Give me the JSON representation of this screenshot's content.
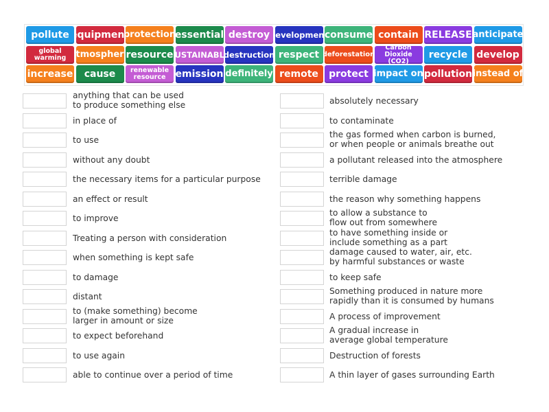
{
  "colors": {
    "blue": "#1f9ae6",
    "red": "#d22a3e",
    "orange": "#f5801d",
    "darkgreen": "#1c8a4b",
    "pink": "#c45cd4",
    "darkblue": "#2634bf",
    "teal": "#3db47a",
    "orangered": "#ec4c1b",
    "purple": "#8a3be0"
  },
  "tiles": [
    {
      "label": "pollute",
      "color": "blue"
    },
    {
      "label": "equipment",
      "color": "red"
    },
    {
      "label": "protection",
      "color": "orange"
    },
    {
      "label": "essential",
      "color": "darkgreen"
    },
    {
      "label": "destroy",
      "color": "pink"
    },
    {
      "label": "development",
      "color": "darkblue"
    },
    {
      "label": "consume",
      "color": "teal"
    },
    {
      "label": "contain",
      "color": "orangered"
    },
    {
      "label": "RELEASE",
      "color": "purple"
    },
    {
      "label": "anticipate",
      "color": "blue"
    },
    {
      "label": "global warming",
      "color": "red"
    },
    {
      "label": "atmosphere",
      "color": "orange"
    },
    {
      "label": "resource",
      "color": "darkgreen"
    },
    {
      "label": "SUSTAINABLE",
      "color": "pink"
    },
    {
      "label": "destruction",
      "color": "darkblue"
    },
    {
      "label": "respect",
      "color": "teal"
    },
    {
      "label": "deforestation",
      "color": "orangered"
    },
    {
      "label": "Carbon Dioxide (CO2)",
      "color": "purple"
    },
    {
      "label": "recycle",
      "color": "blue"
    },
    {
      "label": "develop",
      "color": "red"
    },
    {
      "label": "increase",
      "color": "orange"
    },
    {
      "label": "cause",
      "color": "darkgreen"
    },
    {
      "label": "renewable resource",
      "color": "pink"
    },
    {
      "label": "emission",
      "color": "darkblue"
    },
    {
      "label": "definitely",
      "color": "teal"
    },
    {
      "label": "remote",
      "color": "orangered"
    },
    {
      "label": "protect",
      "color": "purple"
    },
    {
      "label": "impact on",
      "color": "blue"
    },
    {
      "label": "pollution",
      "color": "red"
    },
    {
      "label": "instead of",
      "color": "orange"
    }
  ],
  "left_definitions": [
    "anything that can be used\nto produce something else",
    "in place of",
    "to use",
    "without any doubt",
    "the necessary items for a particular purpose",
    "an effect or result",
    "to improve",
    "Treating a person with consideration",
    "when something is kept safe",
    "to damage",
    "distant",
    "to (make something) become\nlarger in amount or size",
    "to expect beforehand",
    "to use again",
    "able to continue over a period of time"
  ],
  "right_definitions": [
    "absolutely necessary",
    "to contaminate",
    "the gas formed when carbon is burned,\nor when people or animals breathe out",
    "a pollutant released into the atmosphere",
    "terrible damage",
    "the reason why something happens",
    "to allow a substance to\nflow out from somewhere",
    "to have something inside or\ninclude something as a part",
    "damage caused to water, air, etc.\nby harmful substances or waste",
    "to keep safe",
    "Something produced in nature more\nrapidly than it is consumed by humans",
    "A process of improvement",
    "A gradual increase in\naverage global temperature",
    "Destruction of forests",
    "A thin layer of gases surrounding Earth"
  ]
}
